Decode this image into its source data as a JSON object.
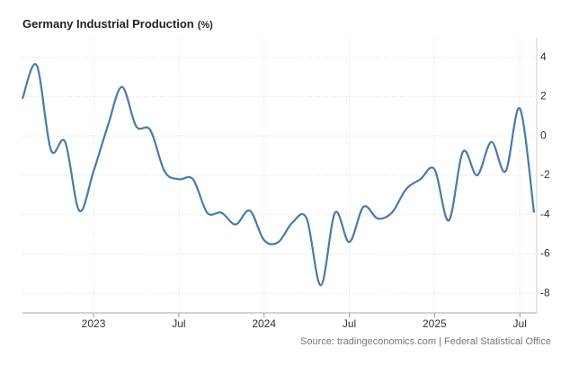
{
  "chart_data": {
    "type": "line",
    "title": "Germany Industrial Production",
    "subtitle": "(%)",
    "source": "Source: tradingeconomics.com | Federal Statistical Office",
    "x": [
      "2022-08",
      "2022-09",
      "2022-10",
      "2022-11",
      "2022-12",
      "2023-01",
      "2023-02",
      "2023-03",
      "2023-04",
      "2023-05",
      "2023-06",
      "2023-07",
      "2023-08",
      "2023-09",
      "2023-10",
      "2023-11",
      "2023-12",
      "2024-01",
      "2024-02",
      "2024-03",
      "2024-04",
      "2024-05",
      "2024-06",
      "2024-07",
      "2024-08",
      "2024-09",
      "2024-10",
      "2024-11",
      "2024-12",
      "2025-01",
      "2025-02",
      "2025-03",
      "2025-04",
      "2025-05",
      "2025-06",
      "2025-07",
      "2025-08"
    ],
    "series": [
      {
        "name": "Germany Industrial Production",
        "color": "#4a7aaa",
        "values": [
          1.9,
          3.6,
          -0.7,
          -0.3,
          -3.8,
          -1.8,
          0.5,
          2.5,
          0.5,
          0.3,
          -1.8,
          -2.2,
          -2.2,
          -3.9,
          -3.9,
          -4.5,
          -3.8,
          -5.3,
          -5.4,
          -4.4,
          -4.2,
          -7.6,
          -3.9,
          -5.4,
          -3.6,
          -4.2,
          -3.9,
          -2.7,
          -2.2,
          -1.7,
          -4.3,
          -0.8,
          -2.0,
          -0.3,
          -1.8,
          1.4,
          -3.9
        ]
      }
    ],
    "xlim": [
      "2022-08",
      "2025-08"
    ],
    "xticks": [
      {
        "value": "2023-01",
        "label": "2023"
      },
      {
        "value": "2023-07",
        "label": "Jul"
      },
      {
        "value": "2024-01",
        "label": "2024"
      },
      {
        "value": "2024-07",
        "label": "Jul"
      },
      {
        "value": "2025-01",
        "label": "2025"
      },
      {
        "value": "2025-07",
        "label": "Jul"
      }
    ],
    "ylim": [
      -9,
      5
    ],
    "yticks": [
      -8,
      -6,
      -4,
      -2,
      0,
      2,
      4
    ],
    "grid": true
  }
}
